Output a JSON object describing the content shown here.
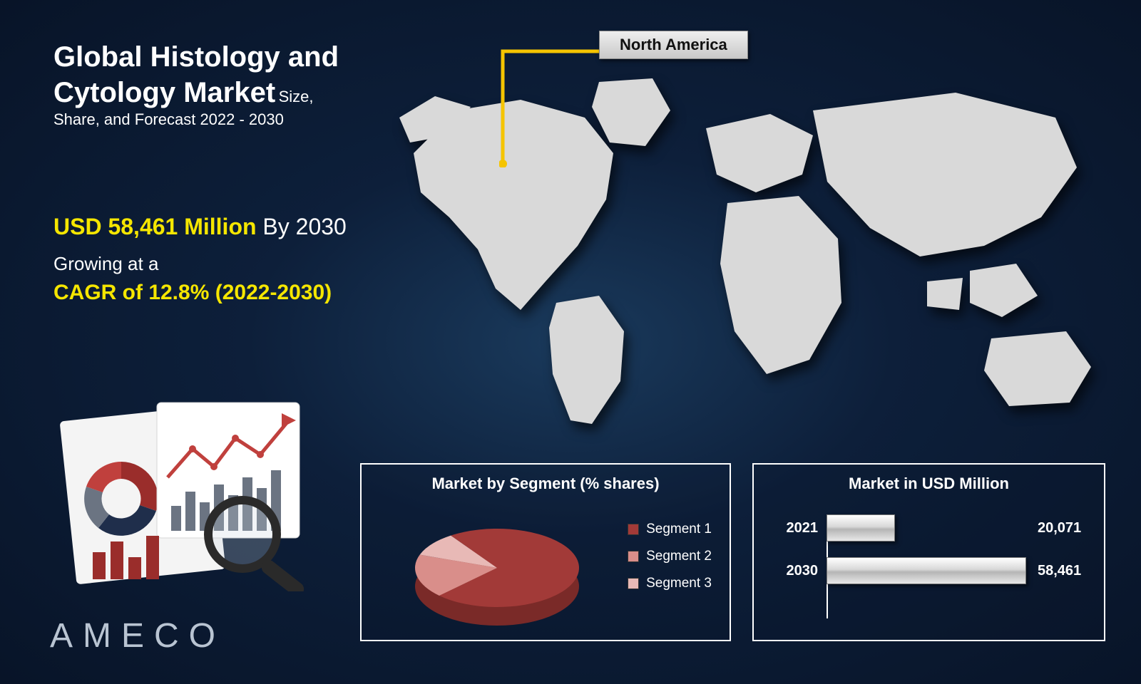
{
  "title": {
    "line1": "Global Histology and",
    "line2": "Cytology Market",
    "sub": "Size, Share, and Forecast 2022 - 2030"
  },
  "stats": {
    "value": "USD 58,461 Million",
    "by_year": " By 2030",
    "growing": "Growing at a",
    "cagr": "CAGR of 12.8% (2022-2030)"
  },
  "map": {
    "callout_label": "North America",
    "continent_fill": "#d9d9d9",
    "callout_line_color": "#f5c400"
  },
  "brand": "AMECO",
  "pie_chart": {
    "title": "Market by Segment  (% shares)",
    "type": "pie",
    "slices": [
      {
        "label": "Segment 1",
        "pct": 72,
        "color": "#a23a38"
      },
      {
        "label": "Segment 2",
        "pct": 18,
        "color": "#d98e8a"
      },
      {
        "label": "Segment 3",
        "pct": 10,
        "color": "#e8b9b6"
      }
    ],
    "edge_color": "#7a2a28"
  },
  "bar_chart": {
    "title": "Market in USD Million",
    "type": "horizontal_bar",
    "max": 58461,
    "bars": [
      {
        "year": "2021",
        "value": 20071,
        "label": "20,071"
      },
      {
        "year": "2030",
        "value": 58461,
        "label": "58,461"
      }
    ],
    "bar_fill": "linear-gradient(180deg,#ffffff 0%,#d8d8d8 45%,#b5b5b5 55%,#e8e8e8 100%)",
    "axis_color": "#ffffff"
  },
  "report_icon": {
    "donut_colors": [
      "#9a2d2b",
      "#1f2e4b",
      "#6b7482",
      "#c0403d"
    ],
    "bar_color_a": "#9a2d2b",
    "bar_color_b": "#6b7482",
    "trend_color": "#c0403d",
    "magnifier_ring": "#2a2a2a",
    "paper_fill": "#f4f4f4"
  },
  "colors": {
    "bg_inner": "#1a3a5c",
    "bg_outer": "#081428",
    "highlight": "#f5e600",
    "text": "#ffffff",
    "panel_border": "#ffffff"
  }
}
